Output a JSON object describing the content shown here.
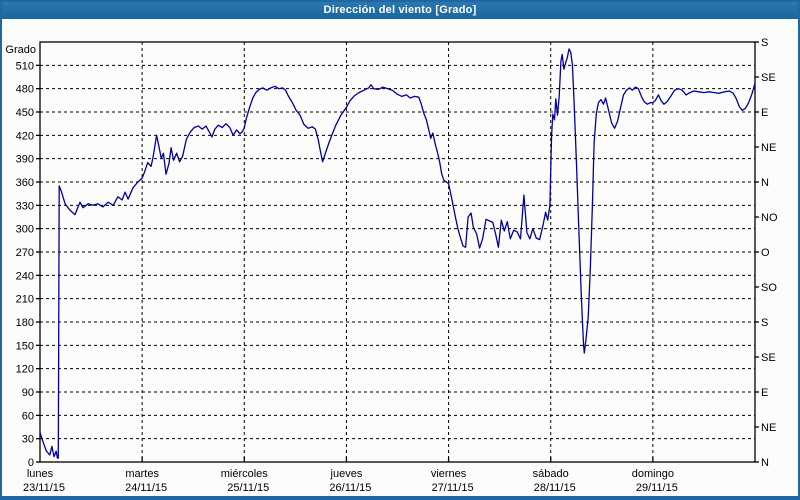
{
  "window": {
    "title": "Dirección del viento [Grado]"
  },
  "colors": {
    "title_bar": "#1f6fa8",
    "title_text": "#ffffff",
    "window_border": "#2167a6",
    "plot_background": "#ffffff",
    "grid": "#000000",
    "axis": "#000000",
    "line": "#0000a0"
  },
  "chart_data": {
    "type": "line",
    "title": "Dirección del viento [Grado]",
    "grid": "dashed",
    "legend_position": "none",
    "y_axis_left": {
      "title": "Grado",
      "range": [
        0,
        540
      ],
      "tick_step": 30,
      "ticks": [
        0,
        30,
        60,
        90,
        120,
        150,
        180,
        210,
        240,
        270,
        300,
        330,
        360,
        390,
        420,
        450,
        480,
        510
      ]
    },
    "y_axis_right": {
      "unit": "compass",
      "ticks": [
        {
          "deg": 0,
          "label": "N"
        },
        {
          "deg": 45,
          "label": "NE"
        },
        {
          "deg": 90,
          "label": "E"
        },
        {
          "deg": 135,
          "label": "SE"
        },
        {
          "deg": 180,
          "label": "S"
        },
        {
          "deg": 225,
          "label": "SO"
        },
        {
          "deg": 270,
          "label": "O"
        },
        {
          "deg": 315,
          "label": "NO"
        },
        {
          "deg": 360,
          "label": "N"
        },
        {
          "deg": 405,
          "label": "NE"
        },
        {
          "deg": 450,
          "label": "E"
        },
        {
          "deg": 495,
          "label": "SE"
        },
        {
          "deg": 540,
          "label": "S"
        }
      ]
    },
    "x_axis": {
      "range_hours": [
        0,
        168
      ],
      "days": [
        {
          "name": "lunes",
          "date": "23/11/15",
          "start_hour": 0
        },
        {
          "name": "martes",
          "date": "24/11/15",
          "start_hour": 24
        },
        {
          "name": "miércoles",
          "date": "25/11/15",
          "start_hour": 48
        },
        {
          "name": "jueves",
          "date": "26/11/15",
          "start_hour": 72
        },
        {
          "name": "viernes",
          "date": "27/11/15",
          "start_hour": 96
        },
        {
          "name": "sábado",
          "date": "28/11/15",
          "start_hour": 120
        },
        {
          "name": "domingo",
          "date": "29/11/15",
          "start_hour": 144
        }
      ]
    },
    "series": [
      {
        "name": "Dirección del viento",
        "color": "#0000a0",
        "points": [
          [
            0,
            38
          ],
          [
            0.7,
            26
          ],
          [
            1.5,
            14
          ],
          [
            2.3,
            9
          ],
          [
            2.8,
            20
          ],
          [
            3.3,
            7
          ],
          [
            3.8,
            14
          ],
          [
            4.1,
            5
          ],
          [
            4.3,
            5
          ],
          [
            4.5,
            355
          ],
          [
            5.0,
            348
          ],
          [
            5.9,
            332
          ],
          [
            7.0,
            324
          ],
          [
            8.2,
            318
          ],
          [
            9.4,
            334
          ],
          [
            10.1,
            327
          ],
          [
            11.3,
            332
          ],
          [
            12.4,
            330
          ],
          [
            13.6,
            332
          ],
          [
            14.8,
            328
          ],
          [
            16.0,
            334
          ],
          [
            17.2,
            330
          ],
          [
            18.3,
            341
          ],
          [
            19.3,
            337
          ],
          [
            20.0,
            347
          ],
          [
            20.7,
            338
          ],
          [
            21.9,
            353
          ],
          [
            23.0,
            360
          ],
          [
            24.0,
            365
          ],
          [
            24.5,
            372
          ],
          [
            25.3,
            385
          ],
          [
            26.1,
            380
          ],
          [
            26.6,
            393
          ],
          [
            27.4,
            420
          ],
          [
            28.0,
            404
          ],
          [
            28.5,
            390
          ],
          [
            29.0,
            397
          ],
          [
            29.6,
            370
          ],
          [
            30.3,
            384
          ],
          [
            30.8,
            404
          ],
          [
            31.4,
            388
          ],
          [
            32.1,
            397
          ],
          [
            32.8,
            386
          ],
          [
            33.5,
            393
          ],
          [
            34.4,
            415
          ],
          [
            35.3,
            424
          ],
          [
            36.2,
            430
          ],
          [
            37.2,
            432
          ],
          [
            38.1,
            428
          ],
          [
            39.0,
            432
          ],
          [
            39.7,
            425
          ],
          [
            40.4,
            418
          ],
          [
            41.1,
            428
          ],
          [
            41.9,
            433
          ],
          [
            42.8,
            430
          ],
          [
            43.7,
            435
          ],
          [
            44.6,
            430
          ],
          [
            45.4,
            420
          ],
          [
            46.2,
            427
          ],
          [
            47.0,
            422
          ],
          [
            47.6,
            425
          ],
          [
            48.0,
            430
          ],
          [
            48.5,
            442
          ],
          [
            49.2,
            455
          ],
          [
            50.0,
            468
          ],
          [
            50.7,
            475
          ],
          [
            51.5,
            479
          ],
          [
            52.4,
            481
          ],
          [
            53.3,
            478
          ],
          [
            54.2,
            481
          ],
          [
            55.2,
            483
          ],
          [
            56.1,
            480
          ],
          [
            57.0,
            481
          ],
          [
            57.7,
            478
          ],
          [
            58.4,
            470
          ],
          [
            59.3,
            462
          ],
          [
            60.2,
            452
          ],
          [
            61.1,
            446
          ],
          [
            62.0,
            434
          ],
          [
            63.0,
            429
          ],
          [
            64.0,
            431
          ],
          [
            64.7,
            428
          ],
          [
            65.4,
            414
          ],
          [
            65.9,
            399
          ],
          [
            66.4,
            386
          ],
          [
            67.0,
            396
          ],
          [
            67.8,
            409
          ],
          [
            68.6,
            421
          ],
          [
            69.5,
            433
          ],
          [
            70.6,
            445
          ],
          [
            71.5,
            452
          ],
          [
            72.0,
            456
          ],
          [
            72.8,
            464
          ],
          [
            73.7,
            470
          ],
          [
            74.9,
            475
          ],
          [
            76.1,
            478
          ],
          [
            77.2,
            481
          ],
          [
            77.8,
            485
          ],
          [
            78.4,
            480
          ],
          [
            79.5,
            479
          ],
          [
            80.6,
            482
          ],
          [
            81.7,
            480
          ],
          [
            82.8,
            478
          ],
          [
            83.9,
            473
          ],
          [
            85.0,
            470
          ],
          [
            86.1,
            472
          ],
          [
            87.0,
            468
          ],
          [
            88.0,
            470
          ],
          [
            89.0,
            469
          ],
          [
            89.6,
            460
          ],
          [
            90.2,
            448
          ],
          [
            90.8,
            440
          ],
          [
            91.3,
            428
          ],
          [
            91.8,
            416
          ],
          [
            92.3,
            423
          ],
          [
            92.9,
            408
          ],
          [
            93.4,
            398
          ],
          [
            93.9,
            386
          ],
          [
            94.4,
            370
          ],
          [
            94.9,
            362
          ],
          [
            95.5,
            360
          ],
          [
            96.0,
            358
          ],
          [
            96.5,
            345
          ],
          [
            97.0,
            332
          ],
          [
            97.6,
            315
          ],
          [
            98.2,
            300
          ],
          [
            98.8,
            288
          ],
          [
            99.4,
            278
          ],
          [
            100.0,
            276
          ],
          [
            100.6,
            315
          ],
          [
            101.3,
            320
          ],
          [
            101.8,
            302
          ],
          [
            102.6,
            293
          ],
          [
            103.3,
            275
          ],
          [
            104.0,
            287
          ],
          [
            104.8,
            312
          ],
          [
            105.6,
            310
          ],
          [
            106.4,
            308
          ],
          [
            107.1,
            292
          ],
          [
            107.7,
            276
          ],
          [
            108.4,
            311
          ],
          [
            109.1,
            297
          ],
          [
            109.8,
            309
          ],
          [
            110.5,
            287
          ],
          [
            111.3,
            298
          ],
          [
            112.1,
            296
          ],
          [
            112.9,
            287
          ],
          [
            113.7,
            343
          ],
          [
            114.4,
            295
          ],
          [
            115.1,
            287
          ],
          [
            115.8,
            300
          ],
          [
            116.6,
            288
          ],
          [
            117.4,
            286
          ],
          [
            118.2,
            305
          ],
          [
            118.8,
            321
          ],
          [
            119.3,
            311
          ],
          [
            119.8,
            330
          ],
          [
            120.2,
            420
          ],
          [
            120.5,
            447
          ],
          [
            120.9,
            440
          ],
          [
            121.2,
            467
          ],
          [
            121.6,
            446
          ],
          [
            122.0,
            470
          ],
          [
            122.4,
            515
          ],
          [
            122.7,
            524
          ],
          [
            123.1,
            505
          ],
          [
            123.5,
            513
          ],
          [
            123.9,
            520
          ],
          [
            124.3,
            531
          ],
          [
            124.7,
            527
          ],
          [
            125.1,
            511
          ],
          [
            125.5,
            462
          ],
          [
            126.0,
            390
          ],
          [
            126.6,
            300
          ],
          [
            127.2,
            210
          ],
          [
            127.7,
            152
          ],
          [
            127.9,
            140
          ],
          [
            128.3,
            158
          ],
          [
            128.8,
            186
          ],
          [
            129.3,
            248
          ],
          [
            129.8,
            330
          ],
          [
            130.2,
            410
          ],
          [
            130.7,
            448
          ],
          [
            131.2,
            462
          ],
          [
            131.8,
            466
          ],
          [
            132.4,
            460
          ],
          [
            132.9,
            468
          ],
          [
            133.6,
            452
          ],
          [
            134.3,
            436
          ],
          [
            135.0,
            429
          ],
          [
            135.7,
            438
          ],
          [
            136.4,
            455
          ],
          [
            137.1,
            472
          ],
          [
            137.8,
            478
          ],
          [
            138.5,
            481
          ],
          [
            139.2,
            478
          ],
          [
            139.9,
            482
          ],
          [
            140.6,
            480
          ],
          [
            141.3,
            470
          ],
          [
            142.0,
            463
          ],
          [
            142.7,
            460
          ],
          [
            143.4,
            462
          ],
          [
            144.0,
            462
          ],
          [
            144.6,
            465
          ],
          [
            145.3,
            472
          ],
          [
            145.9,
            465
          ],
          [
            146.6,
            460
          ],
          [
            147.3,
            463
          ],
          [
            148.2,
            470
          ],
          [
            149.1,
            478
          ],
          [
            150.0,
            480
          ],
          [
            150.9,
            478
          ],
          [
            151.8,
            472
          ],
          [
            152.7,
            475
          ],
          [
            153.6,
            477
          ],
          [
            154.8,
            476
          ],
          [
            156.0,
            475
          ],
          [
            157.2,
            476
          ],
          [
            158.4,
            475
          ],
          [
            159.6,
            474
          ],
          [
            160.8,
            476
          ],
          [
            162.0,
            477
          ],
          [
            162.9,
            474
          ],
          [
            163.6,
            467
          ],
          [
            164.3,
            457
          ],
          [
            165.0,
            452
          ],
          [
            165.8,
            455
          ],
          [
            166.5,
            462
          ],
          [
            167.2,
            472
          ],
          [
            167.7,
            481
          ],
          [
            168.0,
            487
          ]
        ]
      }
    ]
  }
}
